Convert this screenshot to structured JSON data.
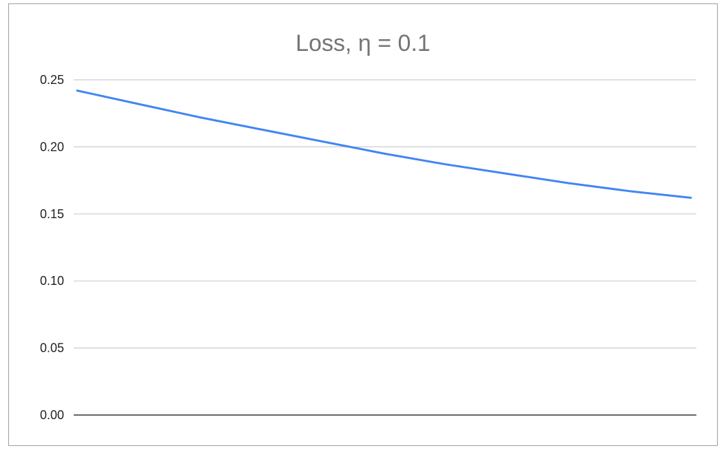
{
  "chart_data": {
    "type": "line",
    "title": "Loss, η = 0.1",
    "xlabel": "",
    "ylabel": "",
    "ylim": [
      0,
      0.25
    ],
    "y_ticks": [
      "0.00",
      "0.05",
      "0.10",
      "0.15",
      "0.20",
      "0.25"
    ],
    "grid": true,
    "legend": "none",
    "series": [
      {
        "color": "#4285f4",
        "x": [
          0,
          1,
          2,
          3,
          4,
          5,
          6,
          7,
          8,
          9,
          10
        ],
        "values": [
          0.242,
          0.232,
          0.222,
          0.213,
          0.204,
          0.195,
          0.187,
          0.18,
          0.173,
          0.167,
          0.162
        ]
      }
    ]
  }
}
